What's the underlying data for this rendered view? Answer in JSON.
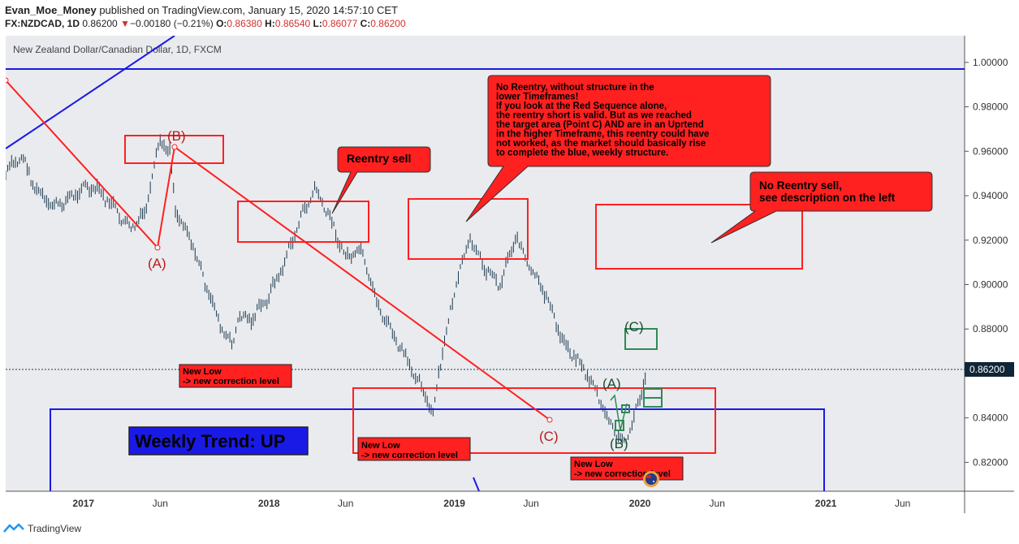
{
  "header": {
    "author": "Evan_Moe_Money",
    "published": "published on TradingView.com, January 15, 2020 14:57:10 CET",
    "symbol": "FX:NZDCAD, 1D",
    "last": "0.86200",
    "arrow": "▼",
    "change": "−0.00180 (−0.21%)",
    "o_label": "O:",
    "o": "0.86380",
    "h_label": "H:",
    "h": "0.86540",
    "l_label": "L:",
    "l": "0.86077",
    "c_label": "C:",
    "c": "0.86200"
  },
  "chart_title": "New Zealand Dollar/Canadian Dollar, 1D, FXCM",
  "footer": {
    "brand": "TradingView"
  },
  "colors": {
    "chart_bg": "#e9ebef",
    "candle": "#1d3a4e",
    "red": "#ff2020",
    "blue": "#1a1ae6",
    "green": "#2e8b57"
  },
  "chart_data": {
    "type": "line",
    "series": [
      {
        "values": [
          [
            "2016-08-01",
            0.95
          ],
          [
            "2016-09-01",
            0.958
          ],
          [
            "2016-10-01",
            0.942
          ],
          [
            "2016-11-01",
            0.935
          ],
          [
            "2016-12-01",
            0.938
          ],
          [
            "2017-01-01",
            0.944
          ],
          [
            "2017-02-01",
            0.942
          ],
          [
            "2017-03-01",
            0.935
          ],
          [
            "2017-04-01",
            0.925
          ],
          [
            "2017-05-01",
            0.931
          ],
          [
            "2017-06-01",
            0.965
          ],
          [
            "2017-06-20",
            0.96
          ],
          [
            "2017-07-01",
            0.934
          ],
          [
            "2017-08-01",
            0.92
          ],
          [
            "2017-09-01",
            0.898
          ],
          [
            "2017-10-01",
            0.88
          ],
          [
            "2017-10-20",
            0.872
          ],
          [
            "2017-11-01",
            0.885
          ],
          [
            "2017-12-01",
            0.885
          ],
          [
            "2018-01-01",
            0.895
          ],
          [
            "2018-02-01",
            0.91
          ],
          [
            "2018-03-01",
            0.928
          ],
          [
            "2018-04-01",
            0.943
          ],
          [
            "2018-05-01",
            0.93
          ],
          [
            "2018-06-01",
            0.912
          ],
          [
            "2018-07-01",
            0.915
          ],
          [
            "2018-08-01",
            0.892
          ],
          [
            "2018-09-01",
            0.878
          ],
          [
            "2018-10-01",
            0.865
          ],
          [
            "2018-11-01",
            0.853
          ],
          [
            "2018-11-20",
            0.84
          ],
          [
            "2018-12-01",
            0.86
          ],
          [
            "2019-01-01",
            0.897
          ],
          [
            "2019-02-01",
            0.921
          ],
          [
            "2019-03-01",
            0.908
          ],
          [
            "2019-04-01",
            0.9
          ],
          [
            "2019-05-01",
            0.922
          ],
          [
            "2019-06-01",
            0.906
          ],
          [
            "2019-07-01",
            0.895
          ],
          [
            "2019-08-01",
            0.875
          ],
          [
            "2019-09-01",
            0.866
          ],
          [
            "2019-10-01",
            0.855
          ],
          [
            "2019-11-01",
            0.838
          ],
          [
            "2019-12-01",
            0.828
          ],
          [
            "2020-01-01",
            0.848
          ],
          [
            "2020-01-15",
            0.862
          ]
        ]
      }
    ],
    "x_ticks": [
      "2017",
      "Jun",
      "2018",
      "Jun",
      "2019",
      "Jun",
      "2020",
      "Jun",
      "2021",
      "Jun"
    ],
    "y_ticks": [
      "1.00000",
      "0.98000",
      "0.96000",
      "0.94000",
      "0.92000",
      "0.90000",
      "0.88000",
      "0.84000",
      "0.82000"
    ],
    "ylim": [
      0.807,
      1.012
    ],
    "last_price_label": "0.86200",
    "last_price": 0.862,
    "annotations": {
      "wave_labels_red": [
        "(A)",
        "(B)",
        "(C)"
      ],
      "wave_labels_green": [
        "(A)",
        "(B)",
        "(C)"
      ],
      "new_low": [
        "New Low",
        "-> new correction level"
      ],
      "callout_reentry": "Reentry sell",
      "callout_no_reentry_lines": [
        "No Reentry, without structure in the",
        "lower Timeframes!",
        "If you look at the Red Sequence alone,",
        "the reentry short is valid. But as we reached",
        "the target area (Point C) AND are in an Uprtend",
        "in the higher Timeframe, this reentry could have",
        "not worked, as the market should basically rise",
        "to complete the blue, weekly structure."
      ],
      "callout_no_reentry_sell_lines": [
        "No Reentry sell,",
        "see description on the left"
      ],
      "weekly_trend": "Weekly Trend: UP"
    }
  }
}
